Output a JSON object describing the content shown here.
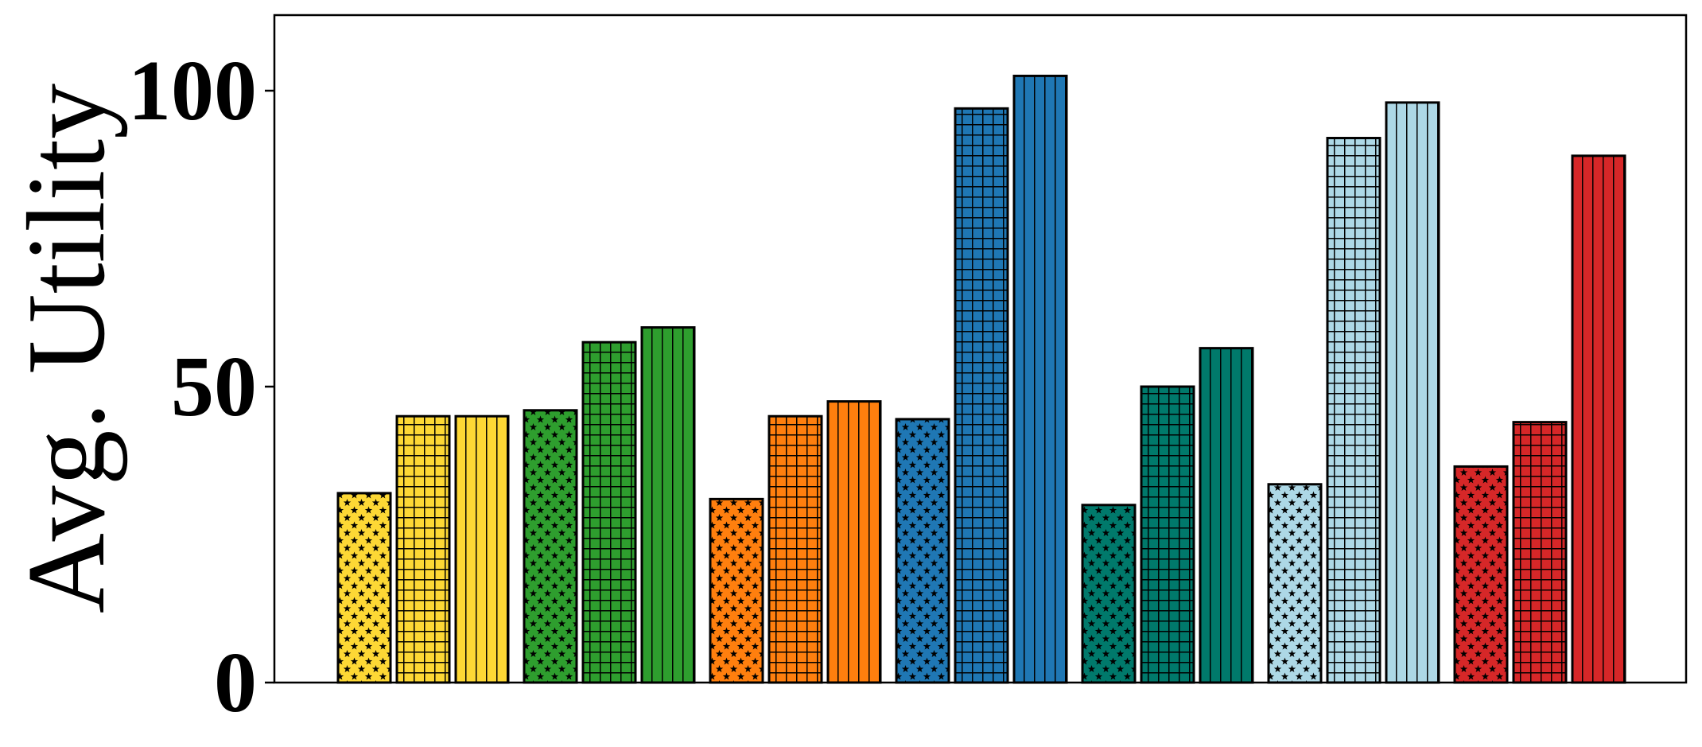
{
  "chart_data": {
    "type": "bar",
    "title": "",
    "xlabel": "",
    "ylabel": "Avg. Utility",
    "ylim": [
      0,
      113
    ],
    "yticks": [
      0,
      50,
      100
    ],
    "grid": false,
    "legend": "none",
    "patterns": [
      "stars",
      "grid",
      "vertical-lines"
    ],
    "groups": [
      {
        "color": "#FDD835",
        "values": [
          32,
          45,
          45
        ]
      },
      {
        "color": "#2E9E2E",
        "values": [
          46,
          57.5,
          60
        ]
      },
      {
        "color": "#FF7F0E",
        "values": [
          31,
          45,
          47.5
        ]
      },
      {
        "color": "#1F77B4",
        "values": [
          44.5,
          97,
          102.5
        ]
      },
      {
        "color": "#00796B",
        "values": [
          30,
          50,
          56.5
        ]
      },
      {
        "color": "#ADD8E6",
        "values": [
          33.5,
          92,
          98
        ]
      },
      {
        "color": "#D62728",
        "values": [
          36.5,
          44,
          89
        ]
      }
    ]
  }
}
